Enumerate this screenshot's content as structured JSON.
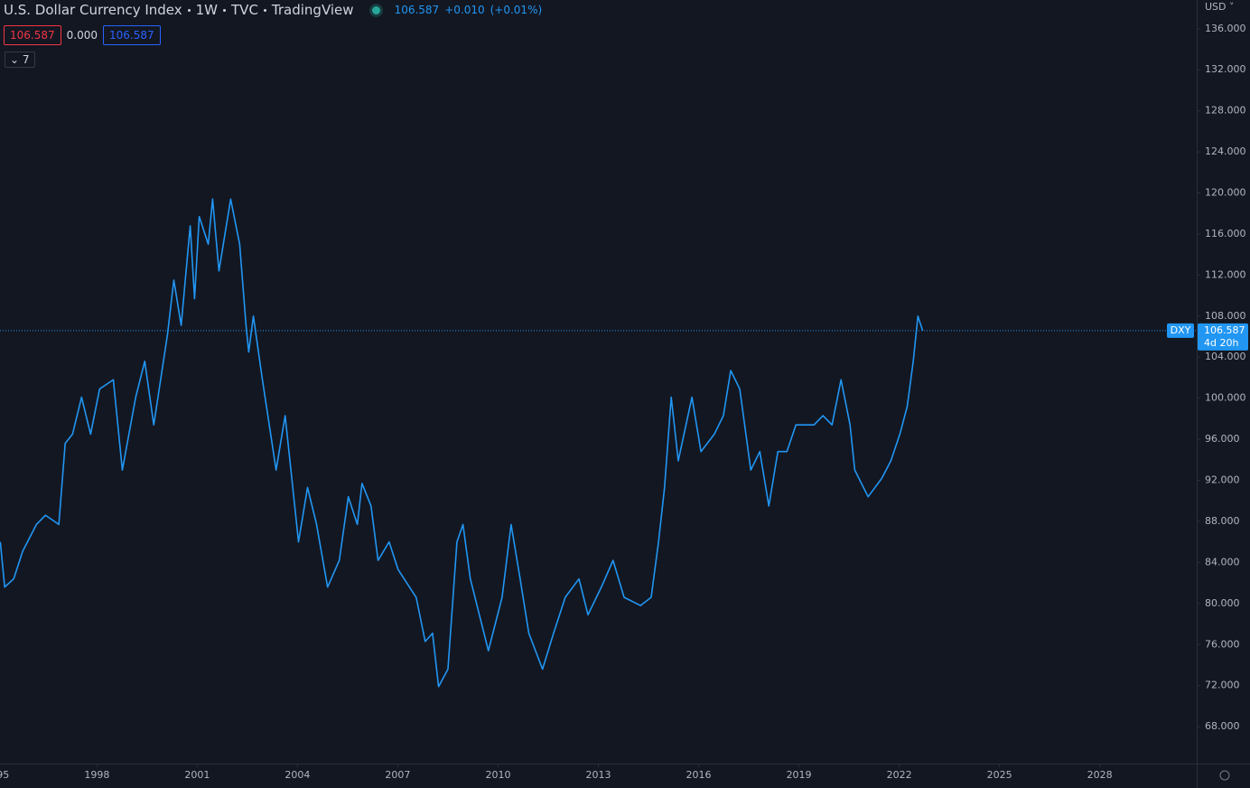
{
  "header": {
    "title": "U.S. Dollar Currency Index",
    "interval": "1W",
    "exchange": "TVC",
    "source": "TradingView",
    "last": "106.587",
    "change": "+0.010",
    "change_pct": "(+0.01%)"
  },
  "toolbar": {
    "bid": "106.587",
    "spread": "0.000",
    "ask": "106.587",
    "indicators_count": "7",
    "currency": "USD"
  },
  "chart_data": {
    "type": "line",
    "x": [
      1995.11,
      1995.24,
      1995.51,
      1995.78,
      1996.19,
      1996.46,
      1996.86,
      1997.05,
      1997.27,
      1997.54,
      1997.81,
      1998.08,
      1998.49,
      1998.76,
      1999.16,
      1999.43,
      1999.7,
      2000.11,
      2000.3,
      2000.52,
      2000.79,
      2000.92,
      2001.06,
      2001.33,
      2001.46,
      2001.65,
      2002.0,
      2002.27,
      2002.46,
      2002.54,
      2002.68,
      2002.95,
      2003.36,
      2003.63,
      2004.03,
      2004.3,
      2004.57,
      2004.9,
      2005.25,
      2005.52,
      2005.79,
      2005.93,
      2006.2,
      2006.41,
      2006.74,
      2007.01,
      2007.55,
      2007.82,
      2008.04,
      2008.22,
      2008.5,
      2008.77,
      2008.95,
      2009.17,
      2009.44,
      2009.71,
      2010.12,
      2010.39,
      2010.66,
      2010.92,
      2011.33,
      2011.66,
      2012.01,
      2012.42,
      2012.69,
      2013.09,
      2013.44,
      2013.77,
      2014.26,
      2014.58,
      2014.8,
      2014.98,
      2015.18,
      2015.39,
      2015.8,
      2016.07,
      2016.47,
      2016.74,
      2016.96,
      2017.23,
      2017.56,
      2017.83,
      2018.1,
      2018.37,
      2018.64,
      2018.91,
      2019.45,
      2019.72,
      2019.99,
      2020.26,
      2020.53,
      2020.67,
      2021.07,
      2021.48,
      2021.75,
      2022.02,
      2022.24,
      2022.42,
      2022.56,
      2022.7
    ],
    "series": [
      {
        "name": "DXY",
        "color": "#2196f3",
        "values": [
          86.0,
          81.6,
          82.4,
          85.1,
          87.7,
          88.6,
          87.7,
          95.6,
          96.5,
          100.1,
          96.5,
          100.9,
          101.8,
          93.0,
          100.1,
          103.6,
          97.4,
          106.2,
          111.5,
          107.1,
          116.8,
          109.7,
          117.7,
          115.0,
          119.4,
          112.4,
          119.4,
          115.0,
          107.1,
          104.5,
          108.0,
          101.8,
          93.0,
          98.3,
          86.0,
          91.3,
          87.7,
          81.6,
          84.2,
          90.4,
          87.7,
          91.7,
          89.5,
          84.2,
          86.0,
          83.3,
          80.6,
          76.3,
          77.1,
          71.9,
          73.6,
          86.0,
          87.7,
          82.4,
          78.9,
          75.4,
          80.6,
          87.7,
          82.4,
          77.1,
          73.6,
          77.1,
          80.6,
          82.4,
          78.9,
          81.6,
          84.2,
          80.6,
          79.8,
          80.6,
          86.0,
          91.3,
          100.1,
          93.9,
          100.1,
          94.8,
          96.5,
          98.3,
          102.7,
          100.9,
          93.0,
          94.8,
          89.5,
          94.8,
          94.8,
          97.4,
          97.4,
          98.3,
          97.4,
          101.8,
          97.4,
          93.0,
          90.4,
          92.2,
          93.9,
          96.5,
          99.2,
          103.6,
          108.0,
          106.587
        ]
      }
    ],
    "xlim": [
      1995.1,
      2030.9
    ],
    "ylim": [
      64.4,
      138.8
    ],
    "xticks": [
      1995,
      1998,
      2001,
      2004,
      2007,
      2010,
      2013,
      2016,
      2019,
      2022,
      2025,
      2028
    ],
    "yticks": [
      {
        "value": 68,
        "label": "68.000"
      },
      {
        "value": 72,
        "label": "72.000"
      },
      {
        "value": 76,
        "label": "76.000"
      },
      {
        "value": 80,
        "label": "80.000"
      },
      {
        "value": 84,
        "label": "84.000"
      },
      {
        "value": 88,
        "label": "88.000"
      },
      {
        "value": 92,
        "label": "92.000"
      },
      {
        "value": 96,
        "label": "96.000"
      },
      {
        "value": 100,
        "label": "100.000"
      },
      {
        "value": 104,
        "label": "104.000"
      },
      {
        "value": 108,
        "label": "108.000"
      },
      {
        "value": 112,
        "label": "112.000"
      },
      {
        "value": 116,
        "label": "116.000"
      },
      {
        "value": 120,
        "label": "120.000"
      },
      {
        "value": 124,
        "label": "124.000"
      },
      {
        "value": 128,
        "label": "128.000"
      },
      {
        "value": 132,
        "label": "132.000"
      },
      {
        "value": 136,
        "label": "136.000"
      }
    ],
    "last_value": 106.587,
    "last_value_label": "106.587",
    "countdown": "4d 20h"
  }
}
